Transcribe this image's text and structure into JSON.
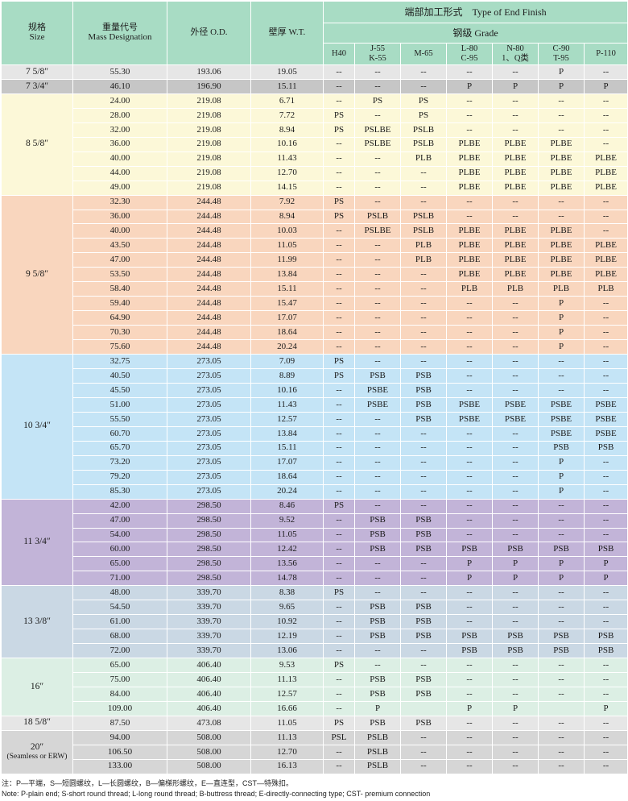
{
  "header": {
    "size_cn": "规格",
    "size_en": "Size",
    "mass_cn": "重量代号",
    "mass_en": "Mass Designation",
    "od": "外径 O.D.",
    "wt": "壁厚 W.T.",
    "end_finish": "端部加工形式　Type of End Finish",
    "grade": "钢级 Grade",
    "grades": [
      [
        "H40"
      ],
      [
        "J-55",
        "K-55"
      ],
      [
        "M-65"
      ],
      [
        "L-80",
        "C-95"
      ],
      [
        "N-80",
        "1、Q类"
      ],
      [
        "C-90",
        "T-95"
      ],
      [
        "P-110"
      ]
    ]
  },
  "colors": {
    "header": "#a8dcc4",
    "g1a": "#e6e6e6",
    "g1b": "#c6c6c6",
    "g2": "#fcf8d8",
    "g3": "#f9d6be",
    "g4": "#c4e4f6",
    "g5": "#c2b4d8",
    "g6": "#cad8e4",
    "g7": "#dcefe4",
    "g8": "#e6e6e6",
    "g9": "#d6d6d6"
  },
  "groups": [
    {
      "size": "7 5/8″",
      "sub": "",
      "color": "g1a",
      "rows": [
        [
          "55.30",
          "193.06",
          "19.05",
          "--",
          "--",
          "--",
          "--",
          "--",
          "P",
          "--"
        ]
      ]
    },
    {
      "size": "7 3/4″",
      "sub": "",
      "color": "g1b",
      "rows": [
        [
          "46.10",
          "196.90",
          "15.11",
          "--",
          "--",
          "--",
          "P",
          "P",
          "P",
          "P"
        ]
      ]
    },
    {
      "size": "8 5/8″",
      "sub": "",
      "color": "g2",
      "rows": [
        [
          "24.00",
          "219.08",
          "6.71",
          "--",
          "PS",
          "PS",
          "--",
          "--",
          "--",
          "--"
        ],
        [
          "28.00",
          "219.08",
          "7.72",
          "PS",
          "--",
          "PS",
          "--",
          "--",
          "--",
          "--"
        ],
        [
          "32.00",
          "219.08",
          "8.94",
          "PS",
          "PSLBE",
          "PSLB",
          "--",
          "--",
          "--",
          "--"
        ],
        [
          "36.00",
          "219.08",
          "10.16",
          "--",
          "PSLBE",
          "PSLB",
          "PLBE",
          "PLBE",
          "PLBE",
          "--"
        ],
        [
          "40.00",
          "219.08",
          "11.43",
          "--",
          "--",
          "PLB",
          "PLBE",
          "PLBE",
          "PLBE",
          "PLBE"
        ],
        [
          "44.00",
          "219.08",
          "12.70",
          "--",
          "--",
          "--",
          "PLBE",
          "PLBE",
          "PLBE",
          "PLBE"
        ],
        [
          "49.00",
          "219.08",
          "14.15",
          "--",
          "--",
          "--",
          "PLBE",
          "PLBE",
          "PLBE",
          "PLBE"
        ]
      ]
    },
    {
      "size": "9 5/8″",
      "sub": "",
      "color": "g3",
      "rows": [
        [
          "32.30",
          "244.48",
          "7.92",
          "PS",
          "--",
          "--",
          "--",
          "--",
          "--",
          "--"
        ],
        [
          "36.00",
          "244.48",
          "8.94",
          "PS",
          "PSLB",
          "PSLB",
          "--",
          "--",
          "--",
          "--"
        ],
        [
          "40.00",
          "244.48",
          "10.03",
          "--",
          "PSLBE",
          "PSLB",
          "PLBE",
          "PLBE",
          "PLBE",
          "--"
        ],
        [
          "43.50",
          "244.48",
          "11.05",
          "--",
          "--",
          "PLB",
          "PLBE",
          "PLBE",
          "PLBE",
          "PLBE"
        ],
        [
          "47.00",
          "244.48",
          "11.99",
          "--",
          "--",
          "PLB",
          "PLBE",
          "PLBE",
          "PLBE",
          "PLBE"
        ],
        [
          "53.50",
          "244.48",
          "13.84",
          "--",
          "--",
          "--",
          "PLBE",
          "PLBE",
          "PLBE",
          "PLBE"
        ],
        [
          "58.40",
          "244.48",
          "15.11",
          "--",
          "--",
          "--",
          "PLB",
          "PLB",
          "PLB",
          "PLB"
        ],
        [
          "59.40",
          "244.48",
          "15.47",
          "--",
          "--",
          "--",
          "--",
          "--",
          "P",
          "--"
        ],
        [
          "64.90",
          "244.48",
          "17.07",
          "--",
          "--",
          "--",
          "--",
          "--",
          "P",
          "--"
        ],
        [
          "70.30",
          "244.48",
          "18.64",
          "--",
          "--",
          "--",
          "--",
          "--",
          "P",
          "--"
        ],
        [
          "75.60",
          "244.48",
          "20.24",
          "--",
          "--",
          "--",
          "--",
          "--",
          "P",
          "--"
        ]
      ]
    },
    {
      "size": "10 3/4″",
      "sub": "",
      "color": "g4",
      "rows": [
        [
          "32.75",
          "273.05",
          "7.09",
          "PS",
          "--",
          "--",
          "--",
          "--",
          "--",
          "--"
        ],
        [
          "40.50",
          "273.05",
          "8.89",
          "PS",
          "PSB",
          "PSB",
          "--",
          "--",
          "--",
          "--"
        ],
        [
          "45.50",
          "273.05",
          "10.16",
          "--",
          "PSBE",
          "PSB",
          "--",
          "--",
          "--",
          "--"
        ],
        [
          "51.00",
          "273.05",
          "11.43",
          "--",
          "PSBE",
          "PSB",
          "PSBE",
          "PSBE",
          "PSBE",
          "PSBE"
        ],
        [
          "55.50",
          "273.05",
          "12.57",
          "--",
          "--",
          "PSB",
          "PSBE",
          "PSBE",
          "PSBE",
          "PSBE"
        ],
        [
          "60.70",
          "273.05",
          "13.84",
          "--",
          "--",
          "--",
          "--",
          "--",
          "PSBE",
          "PSBE"
        ],
        [
          "65.70",
          "273.05",
          "15.11",
          "--",
          "--",
          "--",
          "--",
          "--",
          "PSB",
          "PSB"
        ],
        [
          "73.20",
          "273.05",
          "17.07",
          "--",
          "--",
          "--",
          "--",
          "--",
          "P",
          "--"
        ],
        [
          "79.20",
          "273.05",
          "18.64",
          "--",
          "--",
          "--",
          "--",
          "--",
          "P",
          "--"
        ],
        [
          "85.30",
          "273.05",
          "20.24",
          "--",
          "--",
          "--",
          "--",
          "--",
          "P",
          "--"
        ]
      ]
    },
    {
      "size": "11 3/4″",
      "sub": "",
      "color": "g5",
      "rows": [
        [
          "42.00",
          "298.50",
          "8.46",
          "PS",
          "--",
          "--",
          "--",
          "--",
          "--",
          "--"
        ],
        [
          "47.00",
          "298.50",
          "9.52",
          "--",
          "PSB",
          "PSB",
          "--",
          "--",
          "--",
          "--"
        ],
        [
          "54.00",
          "298.50",
          "11.05",
          "--",
          "PSB",
          "PSB",
          "--",
          "--",
          "--",
          "--"
        ],
        [
          "60.00",
          "298.50",
          "12.42",
          "--",
          "PSB",
          "PSB",
          "PSB",
          "PSB",
          "PSB",
          "PSB"
        ],
        [
          "65.00",
          "298.50",
          "13.56",
          "--",
          "--",
          "--",
          "P",
          "P",
          "P",
          "P"
        ],
        [
          "71.00",
          "298.50",
          "14.78",
          "--",
          "--",
          "--",
          "P",
          "P",
          "P",
          "P"
        ]
      ]
    },
    {
      "size": "13 3/8″",
      "sub": "",
      "color": "g6",
      "rows": [
        [
          "48.00",
          "339.70",
          "8.38",
          "PS",
          "--",
          "--",
          "--",
          "--",
          "--",
          "--"
        ],
        [
          "54.50",
          "339.70",
          "9.65",
          "--",
          "PSB",
          "PSB",
          "--",
          "--",
          "--",
          "--"
        ],
        [
          "61.00",
          "339.70",
          "10.92",
          "--",
          "PSB",
          "PSB",
          "--",
          "--",
          "--",
          "--"
        ],
        [
          "68.00",
          "339.70",
          "12.19",
          "--",
          "PSB",
          "PSB",
          "PSB",
          "PSB",
          "PSB",
          "PSB"
        ],
        [
          "72.00",
          "339.70",
          "13.06",
          "--",
          "--",
          "--",
          "PSB",
          "PSB",
          "PSB",
          "PSB"
        ]
      ]
    },
    {
      "size": "16″",
      "sub": "",
      "color": "g7",
      "rows": [
        [
          "65.00",
          "406.40",
          "9.53",
          "PS",
          "--",
          "--",
          "--",
          "--",
          "--",
          "--"
        ],
        [
          "75.00",
          "406.40",
          "11.13",
          "--",
          "PSB",
          "PSB",
          "--",
          "--",
          "--",
          "--"
        ],
        [
          "84.00",
          "406.40",
          "12.57",
          "--",
          "PSB",
          "PSB",
          "--",
          "--",
          "--",
          "--"
        ],
        [
          "109.00",
          "406.40",
          "16.66",
          "--",
          "P",
          "",
          "P",
          "P",
          "",
          "P"
        ]
      ]
    },
    {
      "size": "18 5/8″",
      "sub": "",
      "color": "g8",
      "rows": [
        [
          "87.50",
          "473.08",
          "11.05",
          "PS",
          "PSB",
          "PSB",
          "--",
          "--",
          "--",
          "--"
        ]
      ]
    },
    {
      "size": "20″",
      "sub": "(Seamless or ERW)",
      "color": "g9",
      "rows": [
        [
          "94.00",
          "508.00",
          "11.13",
          "PSL",
          "PSLB",
          "--",
          "--",
          "--",
          "--",
          "--"
        ],
        [
          "106.50",
          "508.00",
          "12.70",
          "--",
          "PSLB",
          "--",
          "--",
          "--",
          "--",
          "--"
        ],
        [
          "133.00",
          "508.00",
          "16.13",
          "--",
          "PSLB",
          "--",
          "--",
          "--",
          "--",
          "--"
        ]
      ]
    }
  ],
  "notes": {
    "cn": "注：P—平端，S—短圆螺纹，L—长圆螺纹，B—偏梯形螺纹，E—直连型，CST—特殊扣。",
    "en": "Note: P-plain end; S-short round thread; L-long round thread; B-buttress thread; E-directly-connecting type; CST- premium connection"
  }
}
